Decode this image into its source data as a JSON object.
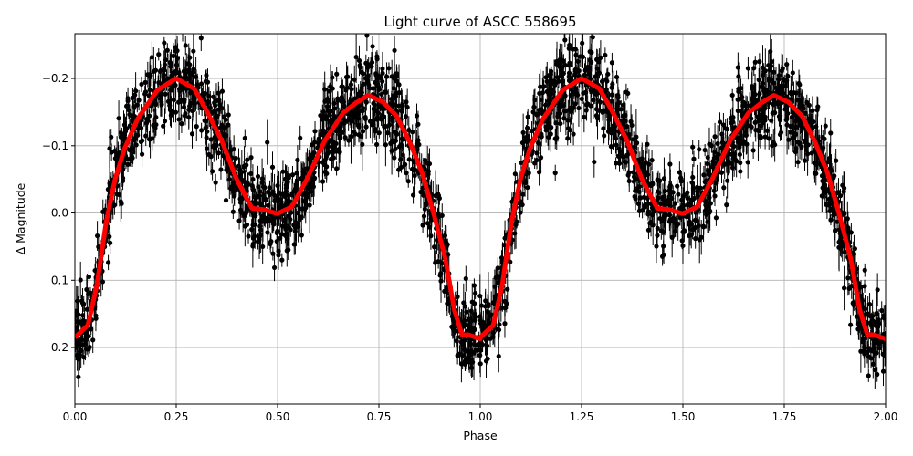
{
  "chart_data": {
    "type": "scatter",
    "title": "Light curve of ASCC 558695",
    "xlabel": "Phase",
    "ylabel": "Δ Magnitude",
    "xlim": [
      0,
      2
    ],
    "ylim": [
      0.284,
      -0.2665
    ],
    "y_inverted": true,
    "grid": true,
    "xticks": [
      "0.00",
      "0.25",
      "0.50",
      "0.75",
      "1.00",
      "1.25",
      "1.50",
      "1.75",
      "2.00"
    ],
    "xtick_values": [
      0,
      0.25,
      0.5,
      0.75,
      1.0,
      1.25,
      1.5,
      1.75,
      2.0
    ],
    "yticks": [
      "−0.2",
      "−0.1",
      "0.0",
      "0.1",
      "0.2"
    ],
    "ytick_values": [
      -0.2,
      -0.1,
      0.0,
      0.1,
      0.2
    ],
    "series": [
      {
        "kind": "errorbar-scatter",
        "color": "#000000",
        "description_values": "dense observations scattered around the model curve, repeated over two cycles"
      },
      {
        "kind": "line",
        "color": "#ff0000",
        "phase": [
          0.0,
          0.032,
          0.054,
          0.077,
          0.099,
          0.122,
          0.155,
          0.204,
          0.25,
          0.294,
          0.324,
          0.362,
          0.399,
          0.437,
          0.467,
          0.499,
          0.535,
          0.572,
          0.617,
          0.662,
          0.692,
          0.724,
          0.76,
          0.794,
          0.827,
          0.857,
          0.887,
          0.914,
          0.936,
          0.955,
          0.97,
          1.0
        ],
        "magnitude": [
          0.185,
          0.167,
          0.108,
          0.014,
          -0.05,
          -0.095,
          -0.14,
          -0.183,
          -0.2,
          -0.185,
          -0.153,
          -0.108,
          -0.05,
          -0.007,
          -0.005,
          0.001,
          -0.009,
          -0.05,
          -0.108,
          -0.149,
          -0.163,
          -0.175,
          -0.165,
          -0.144,
          -0.104,
          -0.059,
          0.005,
          0.068,
          0.144,
          0.181,
          0.181,
          0.187
        ]
      }
    ]
  }
}
